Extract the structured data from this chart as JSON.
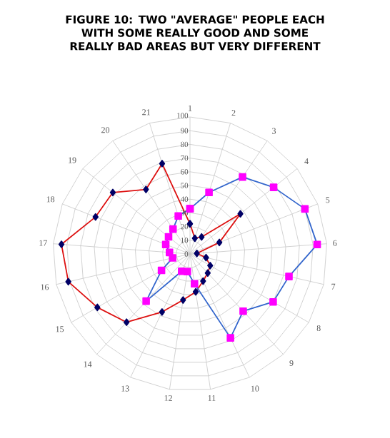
{
  "chart_data": {
    "type": "radar",
    "title": "FIGURE 10: TWO \"AVERAGE\" PEOPLE EACH WITH SOME REALLY GOOD AND SOME REALLY BAD AREAS BUT VERY DIFFERENT",
    "categories": [
      "1",
      "2",
      "3",
      "4",
      "5",
      "6",
      "7",
      "8",
      "9",
      "10",
      "11",
      "12",
      "13",
      "14",
      "15",
      "16",
      "17",
      "18",
      "19",
      "20",
      "21"
    ],
    "series": [
      {
        "color": "#dd1111",
        "marker": "diamond",
        "values": [
          22,
          12,
          15,
          47,
          23,
          5,
          12,
          17,
          19,
          22,
          28,
          34,
          47,
          68,
          78,
          91,
          94,
          74,
          72,
          57,
          69
        ]
      },
      {
        "color": "#3366cc",
        "marker": "square",
        "values": [
          33,
          47,
          68,
          78,
          90,
          93,
          74,
          70,
          57,
          68,
          22,
          13,
          14,
          47,
          24,
          13,
          15,
          19,
          20,
          22,
          29
        ]
      }
    ],
    "ylim": [
      0,
      100
    ],
    "yticks": [
      0,
      10,
      20,
      30,
      40,
      50,
      60,
      70,
      80,
      90,
      100
    ],
    "grid": true
  }
}
